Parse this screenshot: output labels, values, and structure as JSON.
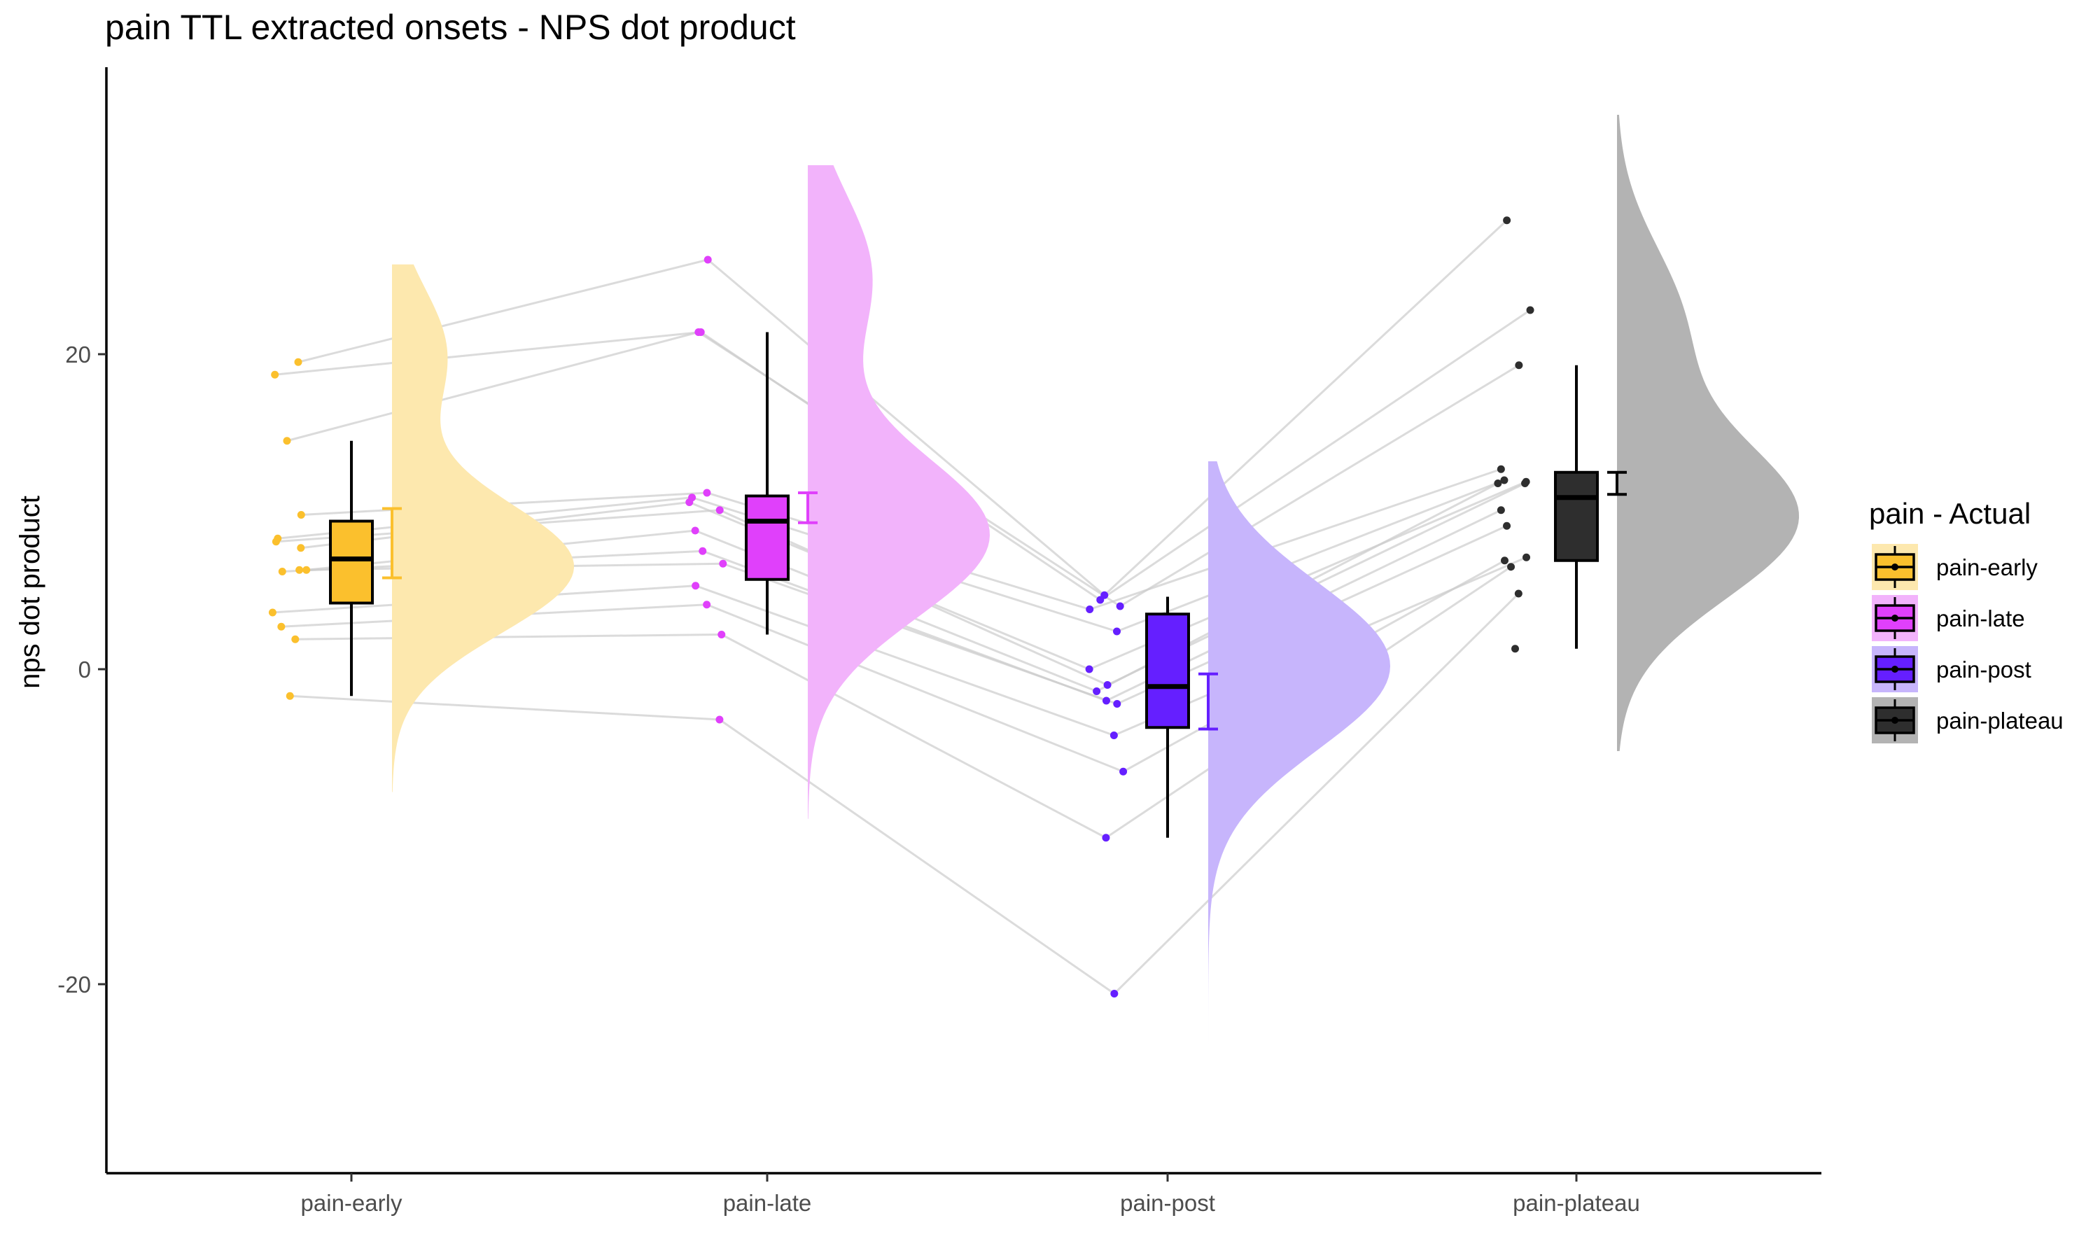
{
  "chart_data": {
    "type": "raincloud",
    "title": "pain TTL extracted onsets - NPS dot product",
    "xlabel": "",
    "ylabel": "nps dot product",
    "ylim": [
      -32.5,
      38
    ],
    "yticks": [
      -20,
      0,
      20
    ],
    "categories": [
      "pain-early",
      "pain-late",
      "pain-post",
      "pain-plateau"
    ],
    "legend": {
      "title": "pain  - Actual",
      "placement": "right",
      "items": [
        "pain-early",
        "pain-late",
        "pain-post",
        "pain-plateau"
      ]
    },
    "colors": {
      "pain-early": "#FBC02D",
      "pain-late": "#E040FB",
      "pain-post": "#651FFF",
      "pain-plateau": "#2E2E2E",
      "line": "#cccccc"
    },
    "cloud_colors": {
      "pain-early": "#FDE8AE",
      "pain-late": "#F2B3FB",
      "pain-post": "#C7B5FC",
      "pain-plateau": "#B3B3B3"
    },
    "series": [
      {
        "name": "pain-early",
        "points": [
          19.5,
          18.7,
          14.5,
          9.8,
          8.3,
          7.7,
          8.1,
          6.3,
          6.2,
          6.3,
          3.6,
          2.7,
          1.9,
          -1.7
        ],
        "box": {
          "min": -1.7,
          "q1": 4.2,
          "median": 7.0,
          "q3": 9.4,
          "max": 14.5
        },
        "errorbar": {
          "low": 5.8,
          "high": 10.2
        },
        "density": {
          "range": [
            -7.8,
            25.7
          ],
          "peaks": [
            [
              6.5,
              1.0
            ],
            [
              20.0,
              0.3
            ]
          ]
        }
      },
      {
        "name": "pain-late",
        "points": [
          26.0,
          21.4,
          21.4,
          11.2,
          10.9,
          10.6,
          10.1,
          8.8,
          7.5,
          6.7,
          5.3,
          4.1,
          2.2,
          -3.2
        ],
        "box": {
          "min": 2.2,
          "q1": 5.7,
          "median": 9.4,
          "q3": 11.0,
          "max": 21.4
        },
        "errorbar": {
          "low": 9.3,
          "high": 11.2
        },
        "density": {
          "range": [
            -9.5,
            32.0
          ],
          "peaks": [
            [
              8.5,
              1.0
            ],
            [
              25.0,
              0.35
            ]
          ]
        }
      },
      {
        "name": "pain-post",
        "points": [
          4.7,
          4.4,
          4.0,
          3.8,
          2.4,
          0.0,
          -1.0,
          -1.4,
          -2.0,
          -2.2,
          -4.2,
          -6.5,
          -10.7,
          -20.6
        ],
        "box": {
          "min": -10.7,
          "q1": -3.7,
          "median": -1.1,
          "q3": 3.5,
          "max": 4.6
        },
        "errorbar": {
          "low": -3.8,
          "high": -0.3
        },
        "density": {
          "range": [
            -29.0,
            13.2
          ],
          "peaks": [
            [
              0.2,
              1.0
            ]
          ]
        }
      },
      {
        "name": "pain-plateau",
        "points": [
          28.5,
          22.8,
          19.3,
          12.7,
          12.0,
          11.9,
          11.8,
          11.8,
          10.1,
          9.1,
          7.1,
          6.9,
          6.5,
          4.8,
          1.3
        ],
        "box": {
          "min": 1.3,
          "q1": 6.9,
          "median": 10.9,
          "q3": 12.5,
          "max": 19.3
        },
        "errorbar": {
          "low": 11.1,
          "high": 12.5
        },
        "density": {
          "range": [
            -5.2,
            35.2
          ],
          "peaks": [
            [
              9.5,
              1.0
            ],
            [
              22.0,
              0.35
            ]
          ]
        }
      }
    ]
  }
}
